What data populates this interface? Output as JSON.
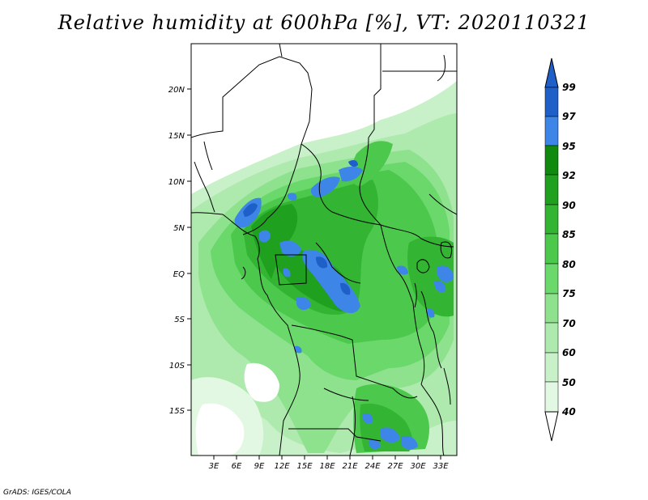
{
  "title": "Relative humidity at 600hPa [%], VT: 2020110321",
  "credit": "GrADS: IGES/COLA",
  "map": {
    "lat_ticks": [
      "20N",
      "15N",
      "10N",
      "5N",
      "EQ",
      "5S",
      "10S",
      "15S"
    ],
    "lon_ticks": [
      "3E",
      "6E",
      "9E",
      "12E",
      "15E",
      "18E",
      "21E",
      "24E",
      "27E",
      "30E",
      "33E"
    ]
  },
  "colorbar": {
    "labels": [
      "99",
      "97",
      "95",
      "92",
      "90",
      "85",
      "80",
      "75",
      "70",
      "60",
      "50",
      "40"
    ],
    "colors": {
      "c99": "#1f5fc8",
      "c97": "#3d86e8",
      "c95": "#0f8a0f",
      "c92": "#1fa01f",
      "c90": "#33b533",
      "c85": "#4cc94c",
      "c80": "#6ad86a",
      "c75": "#8ee28e",
      "c70": "#aee9ae",
      "c60": "#c9f1c9",
      "c50": "#e2f8e2",
      "c40": "#ffffff"
    }
  }
}
